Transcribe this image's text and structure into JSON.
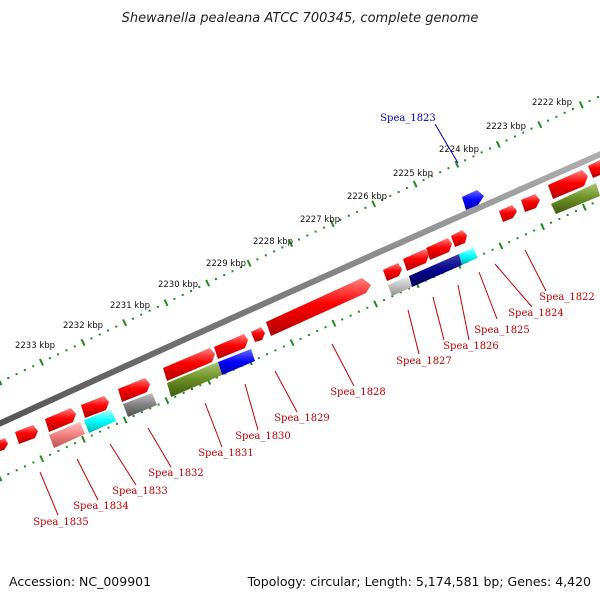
{
  "title": "Shewanella pealeana ATCC 700345, complete genome",
  "footer": {
    "accession": "Accession: NC_009901",
    "summary": "Topology: circular; Length: 5,174,581 bp; Genes: 4,420"
  },
  "scale_labels": [
    "2222 kbp",
    "2223 kbp",
    "2224 kbp",
    "2225 kbp",
    "2226 kbp",
    "2227 kbp",
    "2228 kbp",
    "2229 kbp",
    "2230 kbp",
    "2231 kbp",
    "2232 kbp",
    "2233 kbp"
  ],
  "gene_labels": [
    {
      "name": "Spea_1822",
      "color": "#cc0000"
    },
    {
      "name": "Spea_1823",
      "color": "#0000cc"
    },
    {
      "name": "Spea_1824",
      "color": "#cc0000"
    },
    {
      "name": "Spea_1825",
      "color": "#cc0000"
    },
    {
      "name": "Spea_1826",
      "color": "#cc0000"
    },
    {
      "name": "Spea_1827",
      "color": "#cc0000"
    },
    {
      "name": "Spea_1828",
      "color": "#cc0000"
    },
    {
      "name": "Spea_1829",
      "color": "#cc0000"
    },
    {
      "name": "Spea_1830",
      "color": "#cc0000"
    },
    {
      "name": "Spea_1831",
      "color": "#cc0000"
    },
    {
      "name": "Spea_1832",
      "color": "#cc0000"
    },
    {
      "name": "Spea_1833",
      "color": "#cc0000"
    },
    {
      "name": "Spea_1834",
      "color": "#cc0000"
    },
    {
      "name": "Spea_1835",
      "color": "#cc0000"
    }
  ],
  "colors": {
    "cds": "#ff0000",
    "cog_olive": "#6b8e23",
    "cog_blue": "#0000ff",
    "cog_navy": "#00008b",
    "cog_cyan": "#00ffff",
    "cog_gray": "#808080",
    "cog_lightgray": "#c0c0c0",
    "cog_pink": "#f08080",
    "backbone": "#808080",
    "ticks": "#228b22"
  }
}
